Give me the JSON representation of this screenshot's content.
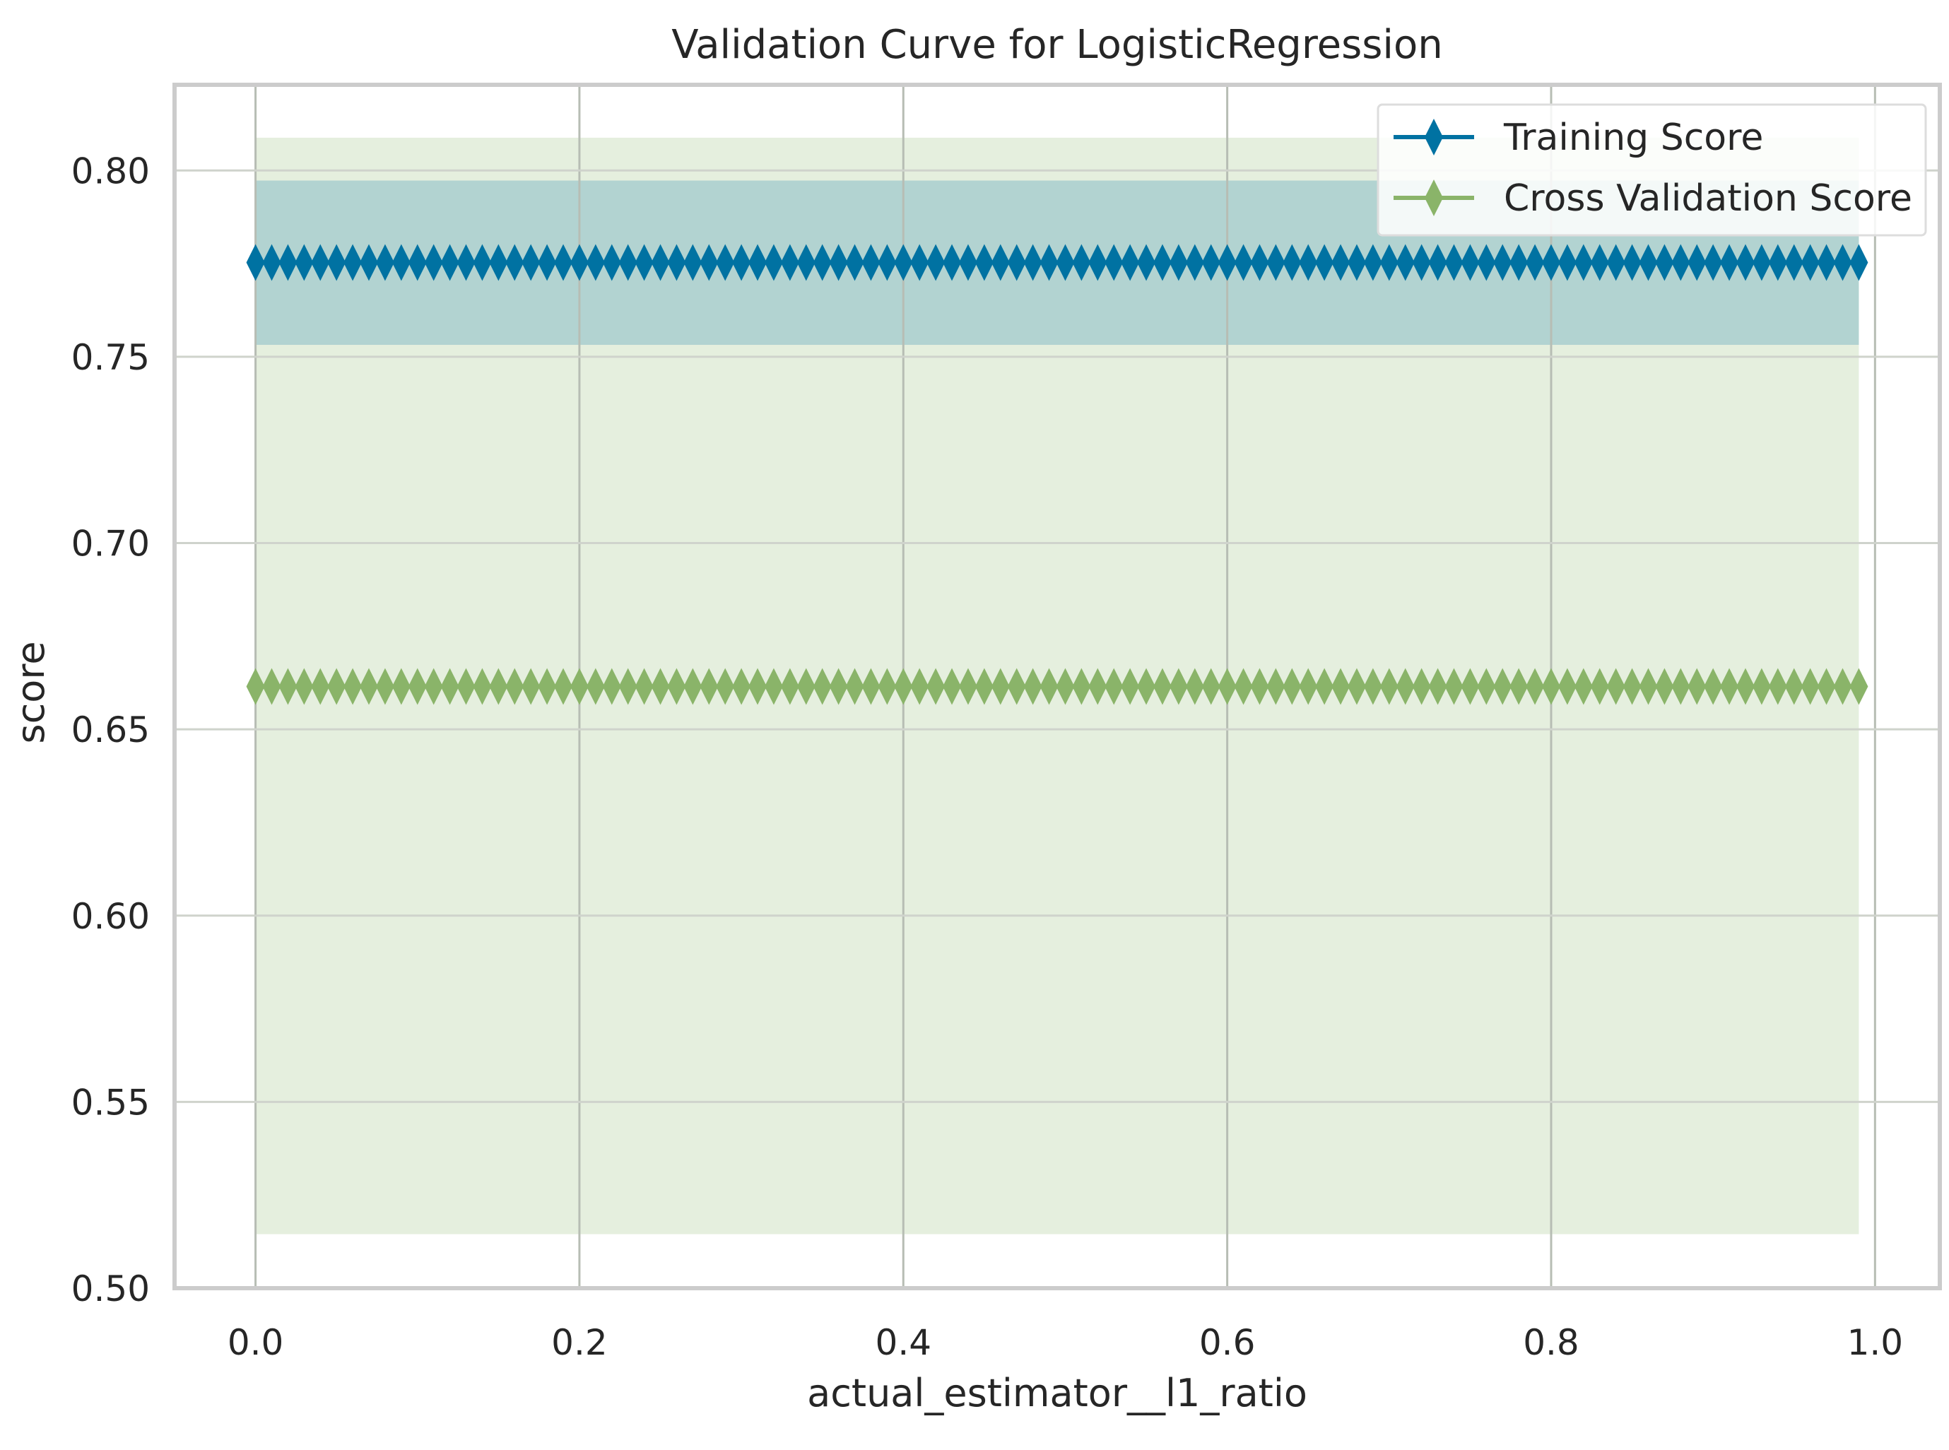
{
  "chart_data": {
    "type": "line",
    "title": "Validation Curve for LogisticRegression",
    "xlabel": "actual_estimator__l1_ratio",
    "ylabel": "score",
    "xlim": [
      -0.05,
      1.04
    ],
    "ylim": [
      0.5,
      0.823
    ],
    "x_ticks": [
      "0.0",
      "0.2",
      "0.4",
      "0.6",
      "0.8",
      "1.0"
    ],
    "y_ticks": [
      "0.50",
      "0.55",
      "0.60",
      "0.65",
      "0.70",
      "0.75",
      "0.80"
    ],
    "grid": true,
    "legend_position": "top-right",
    "x": {
      "start": 0.0,
      "stop": 0.99,
      "step": 0.01
    },
    "series": [
      {
        "name": "Training Score",
        "color": "#0072a2",
        "marker": "diamond",
        "value": 0.7753,
        "band": [
          0.7532,
          0.7973
        ]
      },
      {
        "name": "Cross Validation Score",
        "color": "#8ab469",
        "marker": "diamond",
        "value": 0.6615,
        "band": [
          0.5145,
          0.8088
        ]
      }
    ]
  }
}
